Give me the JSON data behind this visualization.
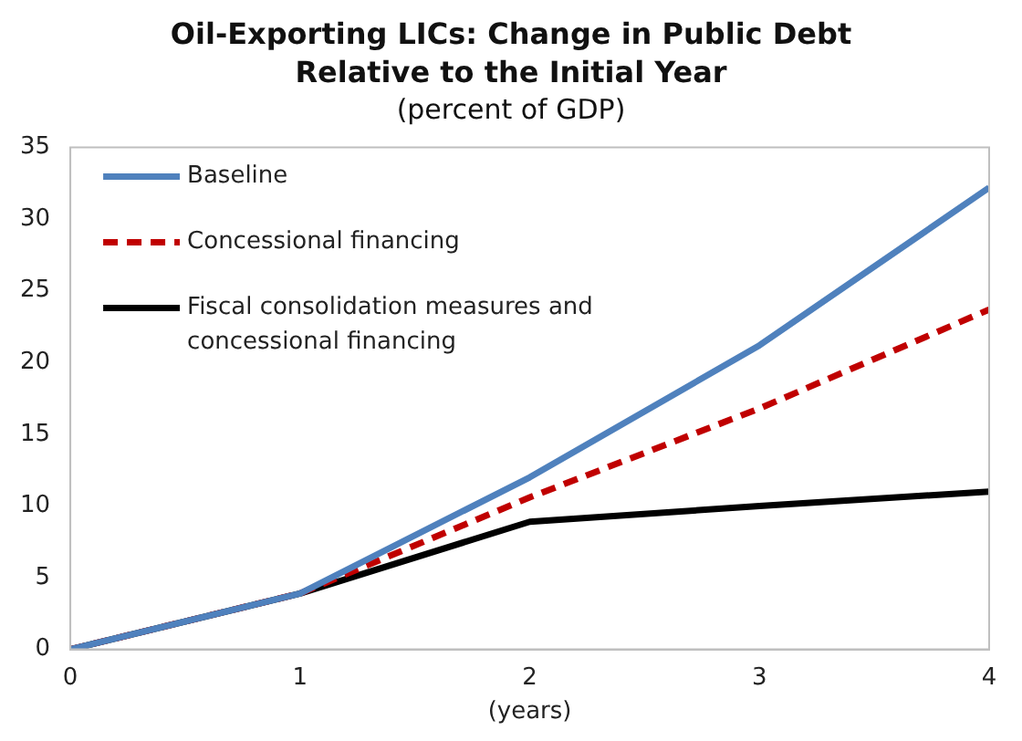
{
  "chart_data": {
    "type": "line",
    "title": "Oil-Exporting LICs: Change in Public Debt Relative to the Initial Year",
    "subtitle": "(percent of GDP)",
    "xlabel": "(years)",
    "x": [
      0,
      1,
      2,
      3,
      4
    ],
    "xlim": [
      0,
      4
    ],
    "xticks": [
      0,
      1,
      2,
      3,
      4
    ],
    "ylim": [
      0,
      35
    ],
    "yticks": [
      0,
      5,
      10,
      15,
      20,
      25,
      30,
      35
    ],
    "grid": false,
    "legend": "top left",
    "marker": "none",
    "series": [
      {
        "name": "Baseline",
        "color": "#4f81bd",
        "values": [
          0,
          3.9,
          12.0,
          21.2,
          32.2
        ]
      },
      {
        "name": "Concessional financing",
        "color": "#c00000",
        "line_style": "dashed",
        "values": [
          0,
          3.9,
          10.6,
          16.8,
          23.7
        ]
      },
      {
        "name": "Fiscal consolidation measures and concessional financing",
        "color": "#000000",
        "values": [
          0,
          3.9,
          8.9,
          10.0,
          11.0
        ]
      }
    ]
  }
}
